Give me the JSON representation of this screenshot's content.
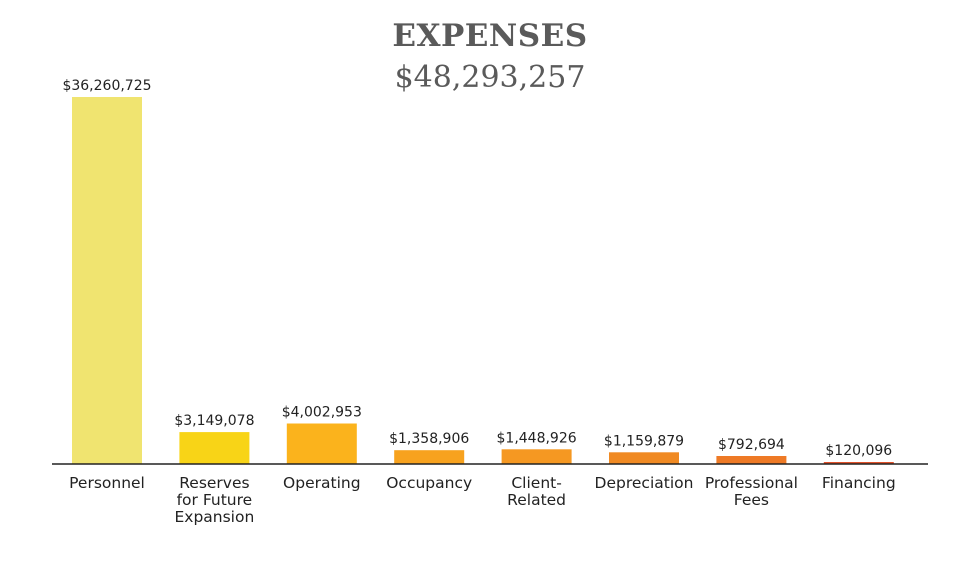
{
  "header": {
    "title": "EXPENSES",
    "total": "$48,293,257"
  },
  "chart_data": {
    "type": "bar",
    "title": "EXPENSES",
    "subtitle": "$48,293,257",
    "xlabel": "",
    "ylabel": "",
    "ylim": [
      0,
      36260725
    ],
    "grid": false,
    "categories": [
      "Personnel",
      "Reserves for Future Expansion",
      "Operating",
      "Occupancy",
      "Client-Related",
      "Depreciation",
      "Professional Fees",
      "Financing"
    ],
    "category_lines": [
      [
        "Personnel"
      ],
      [
        "Reserves",
        "for Future",
        "Expansion"
      ],
      [
        "Operating"
      ],
      [
        "Occupancy"
      ],
      [
        "Client-",
        "Related"
      ],
      [
        "Depreciation"
      ],
      [
        "Professional",
        "Fees"
      ],
      [
        "Financing"
      ]
    ],
    "values": [
      36260725,
      3149078,
      4002953,
      1358906,
      1448926,
      1159879,
      792694,
      120096
    ],
    "value_labels": [
      "$36,260,725",
      "$3,149,078",
      "$4,002,953",
      "$1,358,906",
      "$1,448,926",
      "$1,159,879",
      "$792,694",
      "$120,096"
    ],
    "colors": [
      "#f0e470",
      "#f8d417",
      "#fbb31c",
      "#f7a21e",
      "#f59822",
      "#f08a23",
      "#ee7a26",
      "#e0512a"
    ]
  }
}
